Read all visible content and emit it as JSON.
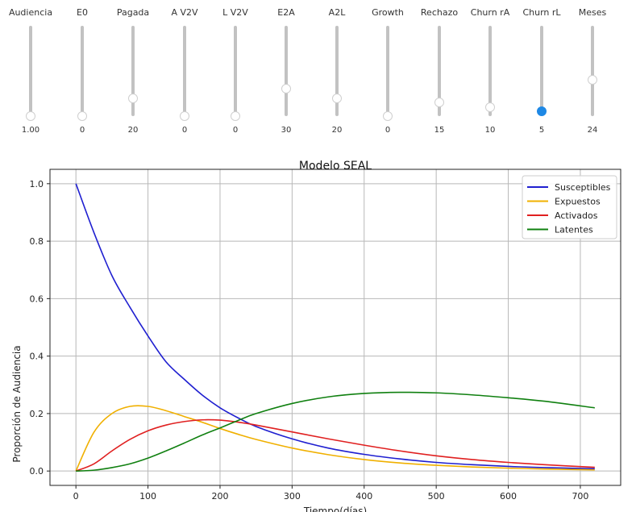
{
  "sliders": [
    {
      "label": "Audiencia",
      "value": "1.00",
      "level": 0.0,
      "active": false
    },
    {
      "label": "E0",
      "value": "0",
      "level": 0.0,
      "active": false
    },
    {
      "label": "Pagada",
      "value": "20",
      "level": 0.2,
      "active": false
    },
    {
      "label": "A V2V",
      "value": "0",
      "level": 0.0,
      "active": false
    },
    {
      "label": "L V2V",
      "value": "0",
      "level": 0.0,
      "active": false
    },
    {
      "label": "E2A",
      "value": "30",
      "level": 0.3,
      "active": false
    },
    {
      "label": "A2L",
      "value": "20",
      "level": 0.2,
      "active": false
    },
    {
      "label": "Growth",
      "value": "0",
      "level": 0.0,
      "active": false
    },
    {
      "label": "Rechazo",
      "value": "15",
      "level": 0.15,
      "active": false
    },
    {
      "label": "Churn rA",
      "value": "10",
      "level": 0.1,
      "active": false
    },
    {
      "label": "Churn rL",
      "value": "5",
      "level": 0.05,
      "active": true
    },
    {
      "label": "Meses",
      "value": "24",
      "level": 0.4,
      "active": false
    }
  ],
  "colors": {
    "susceptibles": "#1f1fd0",
    "expuestos": "#f0b000",
    "activados": "#e02020",
    "latentes": "#108010",
    "slider_active": "#1e88e5"
  },
  "chart_data": {
    "type": "line",
    "title": "Modelo SEAL",
    "xlabel": "Tiempo(días)",
    "ylabel": "Proporción de Audiencia",
    "xlim": [
      -36,
      756
    ],
    "ylim": [
      -0.05,
      1.05
    ],
    "xticks": [
      0,
      100,
      200,
      300,
      400,
      500,
      600,
      700
    ],
    "yticks": [
      0.0,
      0.2,
      0.4,
      0.6,
      0.8,
      1.0
    ],
    "xtick_labels": [
      "0",
      "100",
      "200",
      "300",
      "400",
      "500",
      "600",
      "700"
    ],
    "ytick_labels": [
      "0.0",
      "0.2",
      "0.4",
      "0.6",
      "0.8",
      "1.0"
    ],
    "grid": true,
    "legend": "top-right",
    "x": [
      0,
      25,
      50,
      75,
      100,
      125,
      150,
      175,
      200,
      225,
      250,
      300,
      350,
      400,
      450,
      500,
      550,
      600,
      650,
      720
    ],
    "series": [
      {
        "name": "Susceptibles",
        "color_key": "susceptibles",
        "values": [
          1.0,
          0.83,
          0.68,
          0.57,
          0.47,
          0.38,
          0.32,
          0.265,
          0.22,
          0.185,
          0.155,
          0.112,
          0.08,
          0.058,
          0.042,
          0.03,
          0.022,
          0.016,
          0.012,
          0.008
        ]
      },
      {
        "name": "Expuestos",
        "color_key": "expuestos",
        "values": [
          0.0,
          0.135,
          0.2,
          0.225,
          0.225,
          0.21,
          0.19,
          0.17,
          0.148,
          0.128,
          0.11,
          0.08,
          0.057,
          0.04,
          0.028,
          0.02,
          0.014,
          0.01,
          0.007,
          0.004
        ]
      },
      {
        "name": "Activados",
        "color_key": "activados",
        "values": [
          0.0,
          0.025,
          0.07,
          0.11,
          0.14,
          0.16,
          0.172,
          0.178,
          0.177,
          0.17,
          0.16,
          0.136,
          0.112,
          0.09,
          0.07,
          0.053,
          0.04,
          0.03,
          0.022,
          0.013
        ]
      },
      {
        "name": "Latentes",
        "color_key": "latentes",
        "values": [
          0.0,
          0.003,
          0.012,
          0.025,
          0.045,
          0.07,
          0.097,
          0.125,
          0.15,
          0.176,
          0.2,
          0.235,
          0.258,
          0.27,
          0.274,
          0.272,
          0.265,
          0.255,
          0.243,
          0.22
        ]
      }
    ]
  }
}
